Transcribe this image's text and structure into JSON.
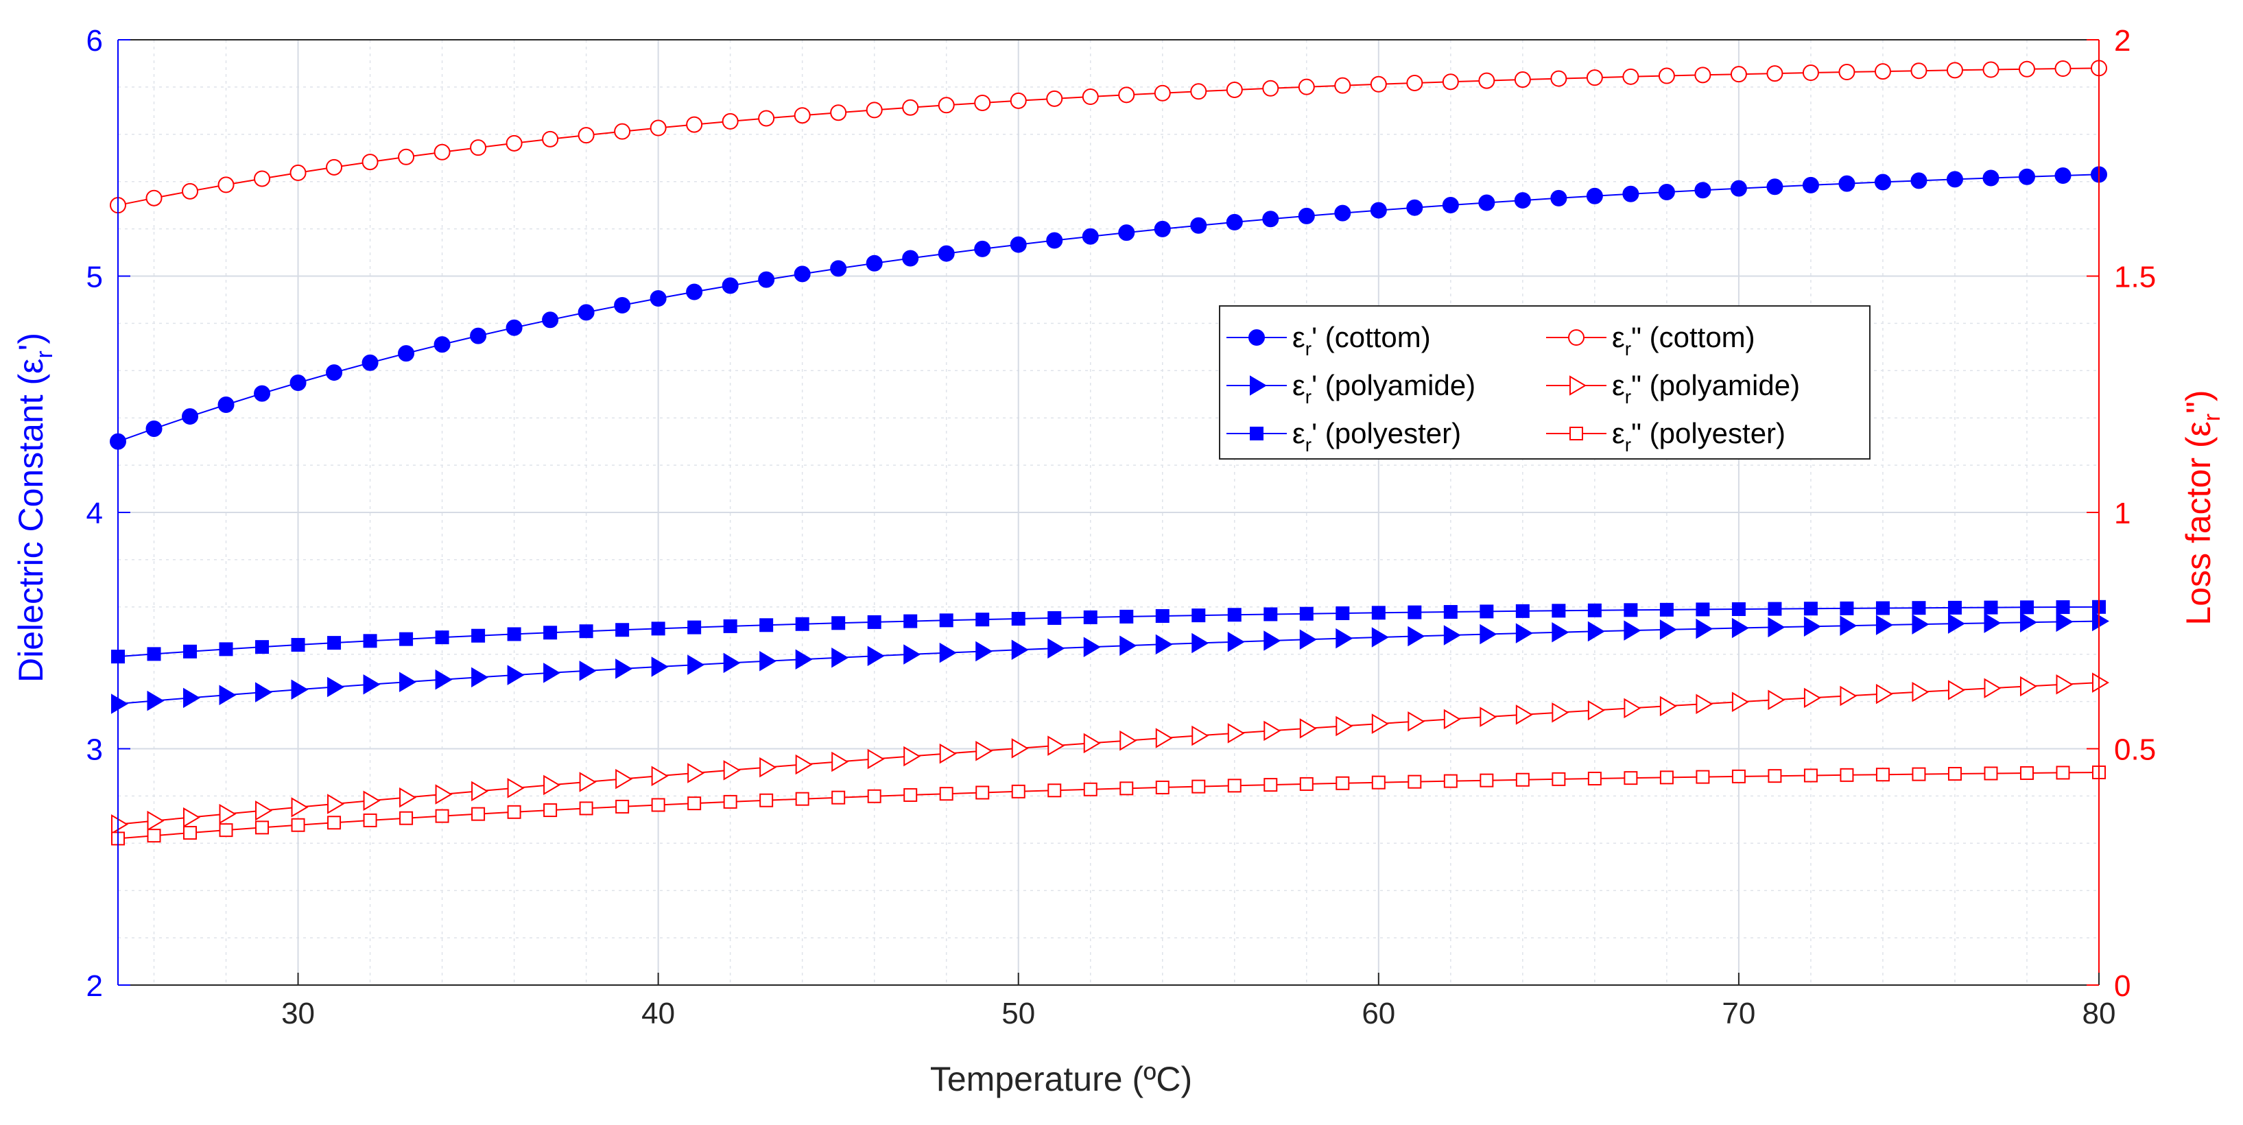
{
  "chart_data": {
    "type": "line",
    "title": "",
    "xlabel": "Temperature (ºC)",
    "ylabel_left": {
      "text": "Dielectric Constant (ε",
      "sub": "r",
      "suffix": "')"
    },
    "ylabel_right": {
      "text": "Loss factor (ε",
      "sub": "r",
      "suffix": "\")"
    },
    "xlim": [
      25,
      80
    ],
    "ylim_left": [
      2,
      6
    ],
    "ylim_right": [
      0,
      2
    ],
    "xticks": [
      "30",
      "40",
      "50",
      "60",
      "70",
      "80"
    ],
    "xtick_values": [
      30,
      40,
      50,
      60,
      70,
      80
    ],
    "yticks_left": [
      "2",
      "3",
      "4",
      "5",
      "6"
    ],
    "ytick_values_left": [
      2,
      3,
      4,
      5,
      6
    ],
    "yticks_right": [
      "0",
      "0.5",
      "1",
      "1.5",
      "2"
    ],
    "ytick_values_right": [
      0,
      0.5,
      1,
      1.5,
      2
    ],
    "grid": true,
    "minor_grid": true,
    "legend_position": "center-right",
    "colors": {
      "left": "#0000ff",
      "right": "#ff0000",
      "grid": "#dfe3ea"
    },
    "x_start": 25,
    "x_step": 1,
    "series": [
      {
        "name": "cottom",
        "label": "' (cottom)",
        "axis": "left",
        "marker": "circle-filled",
        "start": 4.3,
        "end": 5.43,
        "shape": "exp",
        "k": 0.045,
        "curve_factor": 0.9158
      },
      {
        "name": "polyamide",
        "label": "' (polyamide)",
        "axis": "left",
        "marker": "triangle-right-filled",
        "start": 3.19,
        "end": 3.54,
        "shape": "exp",
        "k": 0.03,
        "curve_factor": 0.808
      },
      {
        "name": "polyester",
        "label": "' (polyester)",
        "axis": "left",
        "marker": "square-filled",
        "start": 3.39,
        "end": 3.6,
        "shape": "exp",
        "k": 0.05,
        "curve_factor": 0.936
      },
      {
        "name": "cottom",
        "label": "\" (cottom)",
        "axis": "right",
        "marker": "circle-open",
        "start": 1.65,
        "end": 1.94,
        "shape": "exp",
        "k": 0.05,
        "curve_factor": 0.936
      },
      {
        "name": "polyamide",
        "label": "\" (polyamide)",
        "axis": "right",
        "marker": "triangle-right-open",
        "start": 0.34,
        "end": 0.64,
        "shape": "exp",
        "k": 0.012,
        "curve_factor": 0.4833
      },
      {
        "name": "polyester",
        "label": "\" (polyester)",
        "axis": "right",
        "marker": "square-open",
        "start": 0.31,
        "end": 0.45,
        "shape": "exp",
        "k": 0.04,
        "curve_factor": 0.8892
      }
    ],
    "legend": [
      {
        "symbol": "ε",
        "sub": "r",
        "text": "' (cottom)",
        "series": 0
      },
      {
        "symbol": "ε",
        "sub": "r",
        "text": "\" (cottom)",
        "series": 3
      },
      {
        "symbol": "ε",
        "sub": "r",
        "text": "' (polyamide)",
        "series": 1
      },
      {
        "symbol": "ε",
        "sub": "r",
        "text": "\" (polyamide)",
        "series": 4
      },
      {
        "symbol": "ε",
        "sub": "r",
        "text": "' (polyester)",
        "series": 2
      },
      {
        "symbol": "ε",
        "sub": "r",
        "text": "\" (polyester)",
        "series": 5
      }
    ]
  }
}
